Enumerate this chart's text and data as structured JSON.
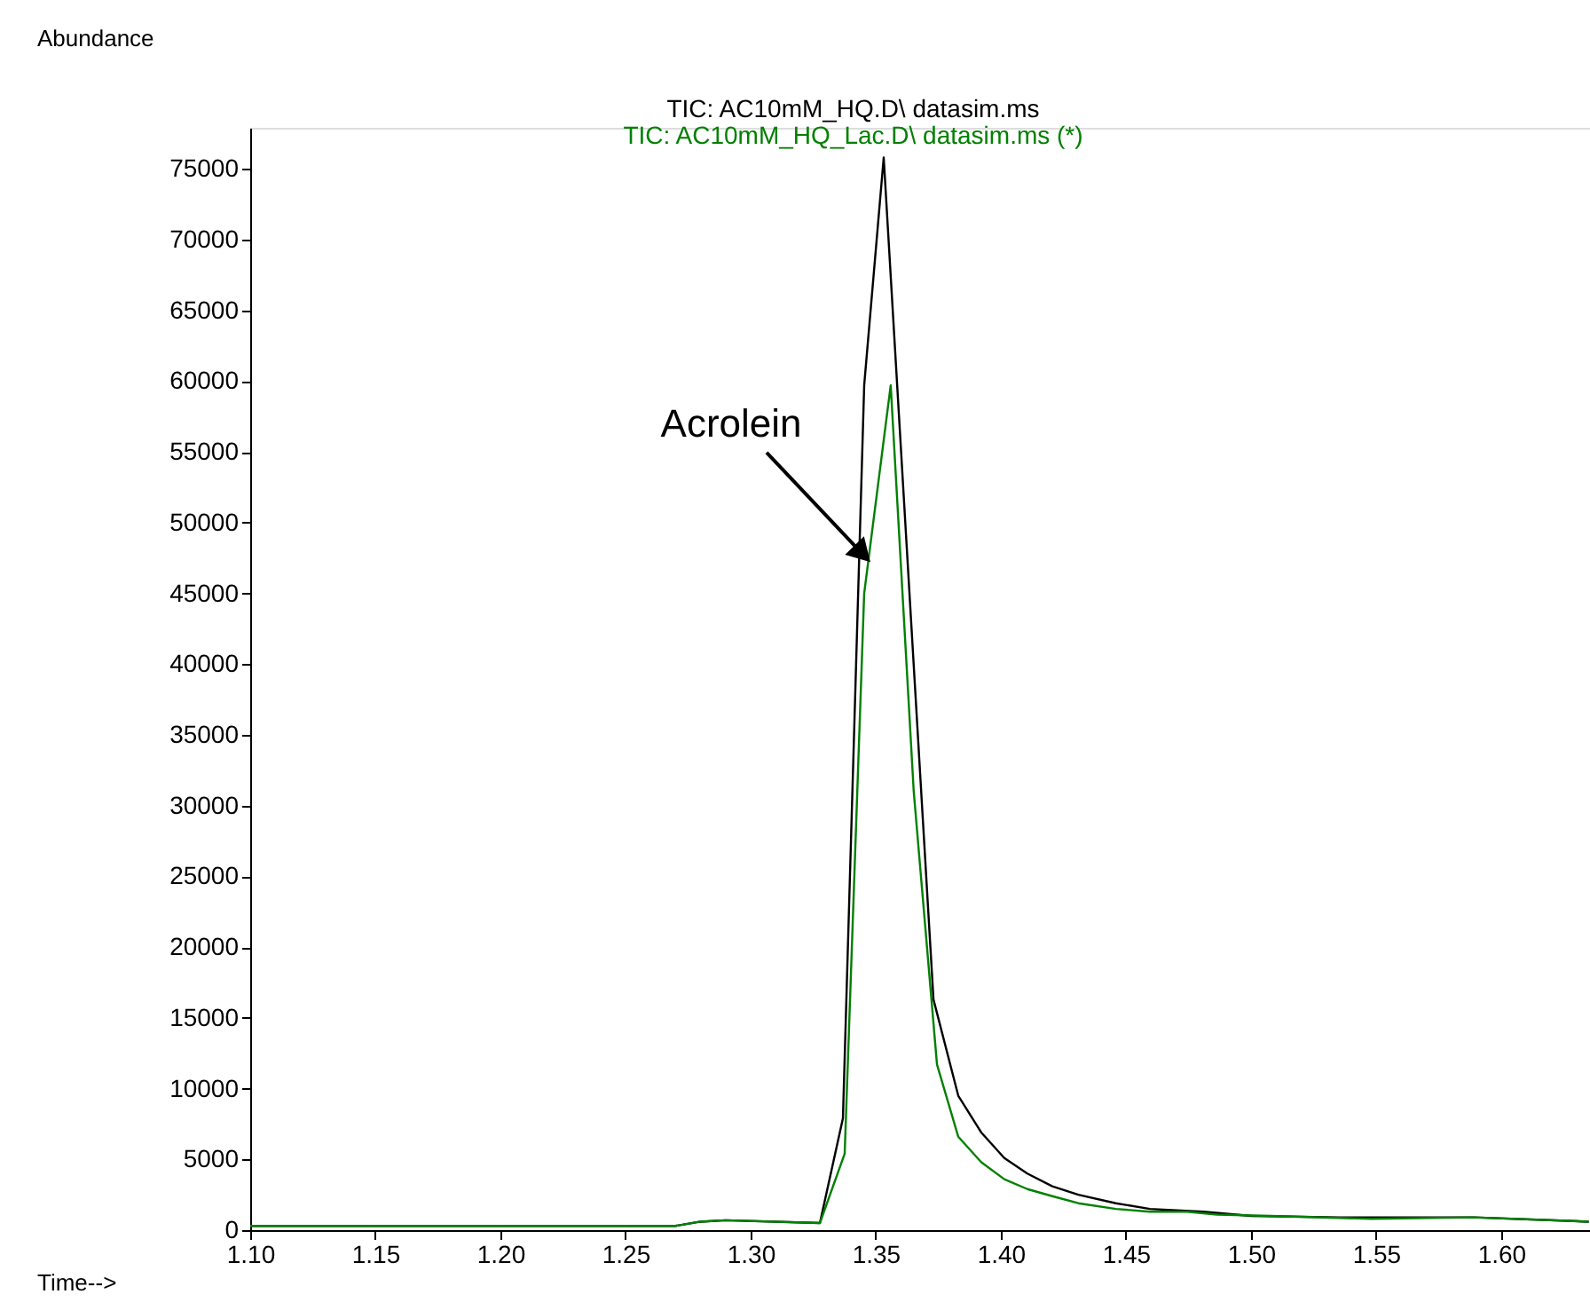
{
  "chart_data": {
    "type": "line",
    "ylabel": "Abundance",
    "xlabel": "Time-->",
    "legend": "top",
    "grid": false,
    "marker": "none",
    "line_style": "solid",
    "xlim": [
      1.1,
      1.6355
    ],
    "xticks": [
      {
        "value": 1.1,
        "label": "1.10"
      },
      {
        "value": 1.15,
        "label": "1.15"
      },
      {
        "value": 1.2,
        "label": "1.20"
      },
      {
        "value": 1.25,
        "label": "1.25"
      },
      {
        "value": 1.3,
        "label": "1.30"
      },
      {
        "value": 1.35,
        "label": "1.35"
      },
      {
        "value": 1.4,
        "label": "1.40"
      },
      {
        "value": 1.45,
        "label": "1.45"
      },
      {
        "value": 1.5,
        "label": "1.50"
      },
      {
        "value": 1.55,
        "label": "1.55"
      },
      {
        "value": 1.6,
        "label": "1.60"
      }
    ],
    "ylim": [
      0,
      77900
    ],
    "yticks": [
      0,
      5000,
      10000,
      15000,
      20000,
      25000,
      30000,
      35000,
      40000,
      45000,
      50000,
      55000,
      60000,
      65000,
      70000,
      75000
    ],
    "annotations": [
      {
        "text": "Acrolein",
        "x": 1.3447,
        "y": 47800
      }
    ],
    "series": [
      {
        "name": "TIC: AC10mM_HQ.D\\ datasim.ms",
        "color": "#000000",
        "x": [
          1.1,
          1.27,
          1.28,
          1.29,
          1.3277,
          1.3369,
          1.3454,
          1.3532,
          1.3731,
          1.383,
          1.3922,
          1.4014,
          1.4106,
          1.4206,
          1.431,
          1.446,
          1.4596,
          1.4809,
          1.5,
          1.535,
          1.589,
          1.635
        ],
        "values": [
          300,
          300,
          600,
          700,
          500,
          7900,
          59700,
          75800,
          16300,
          9500,
          6900,
          5100,
          4000,
          3100,
          2500,
          1900,
          1500,
          1300,
          1000,
          900,
          900,
          600
        ]
      },
      {
        "name": "TIC: AC10mM_HQ_Lac.D\\ datasim.ms (*)",
        "color": "#008000",
        "x": [
          1.1,
          1.27,
          1.28,
          1.29,
          1.3277,
          1.3376,
          1.3454,
          1.356,
          1.3652,
          1.3745,
          1.383,
          1.3922,
          1.4014,
          1.4106,
          1.4206,
          1.431,
          1.446,
          1.4596,
          1.4745,
          1.4865,
          1.5078,
          1.548,
          1.589,
          1.635
        ],
        "values": [
          300,
          300,
          600,
          700,
          500,
          5400,
          45000,
          59700,
          31000,
          11700,
          6600,
          4800,
          3600,
          2900,
          2400,
          1900,
          1500,
          1300,
          1300,
          1100,
          1000,
          800,
          900,
          600
        ]
      }
    ]
  }
}
